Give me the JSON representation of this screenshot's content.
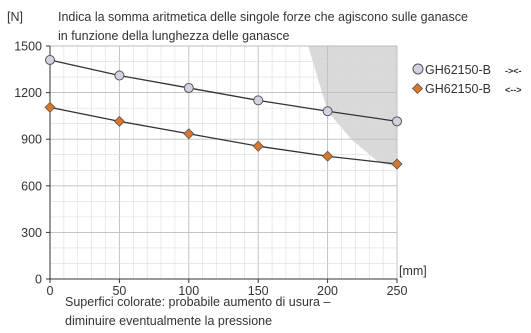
{
  "chart_data": {
    "type": "line",
    "title_lines": [
      "Indica la somma aritmetica delle singole forze che agiscono sulle ganasce",
      "in funzione della lunghezza delle ganasce"
    ],
    "ylabel": "[N]",
    "xlabel": "[mm]",
    "x": [
      0,
      50,
      100,
      150,
      200,
      250
    ],
    "xlim": [
      0,
      250
    ],
    "ylim": [
      0,
      1500
    ],
    "xticks": [
      "0",
      "50",
      "100",
      "150",
      "200",
      "250"
    ],
    "yticks": [
      "0",
      "300",
      "600",
      "900",
      "1200",
      "1500"
    ],
    "grid": true,
    "legend_position": "right",
    "series": [
      {
        "name": "GH62150-B",
        "direction_symbol": "-><-",
        "marker": "circle",
        "marker_color": "#d2d2e2",
        "values": [
          1410,
          1310,
          1230,
          1150,
          1080,
          1015
        ]
      },
      {
        "name": "GH62150-B",
        "direction_symbol": "<-->",
        "marker": "diamond",
        "marker_color": "#d9782d",
        "values": [
          1105,
          1015,
          935,
          855,
          790,
          740
        ]
      }
    ],
    "shaded_region": {
      "meaning": "probable increased wear",
      "upper_edge": [
        [
          186,
          1500
        ],
        [
          200,
          1080
        ],
        [
          217,
          900
        ],
        [
          237,
          750
        ],
        [
          250,
          720
        ]
      ]
    },
    "note_lines": [
      "Superfici colorate: probabile aumento di usura –",
      "diminuire eventualmente la pressione"
    ],
    "colors": {
      "grid": "#cccccc",
      "axis": "#333333",
      "line": "#333333",
      "shade": "#d9d9d9"
    }
  }
}
